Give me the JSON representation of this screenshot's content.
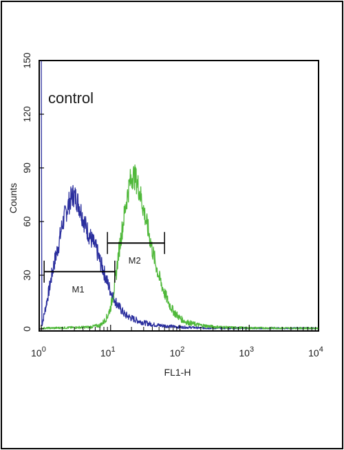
{
  "chart_data": {
    "type": "line",
    "title": "",
    "xlabel": "FL1-H",
    "ylabel": "Counts",
    "x_scale": "log",
    "xlim": [
      1,
      10000
    ],
    "ylim": [
      0,
      150
    ],
    "x_ticks": [
      {
        "base": "10",
        "exp": "0"
      },
      {
        "base": "10",
        "exp": "1"
      },
      {
        "base": "10",
        "exp": "2"
      },
      {
        "base": "10",
        "exp": "3"
      },
      {
        "base": "10",
        "exp": "4"
      }
    ],
    "y_ticks": [
      "0",
      "30",
      "60",
      "90",
      "120",
      "150"
    ],
    "annotation": "control",
    "colors": {
      "blue_series": "#2b2f9e",
      "green_series": "#4fb83a",
      "axis": "#000000"
    },
    "series": [
      {
        "color": "#2b2f9e",
        "x": [
          1,
          1.02,
          1.1,
          1.3,
          1.5,
          1.8,
          2.0,
          2.3,
          2.6,
          2.9,
          3.2,
          3.6,
          4.0,
          4.5,
          5.0,
          5.6,
          6.3,
          7.0,
          8.0,
          9.0,
          10,
          12,
          14,
          16,
          20,
          25,
          30,
          40,
          50,
          70,
          100,
          150,
          200,
          400,
          1000,
          10000
        ],
        "y": [
          150,
          2,
          8,
          22,
          35,
          48,
          58,
          66,
          72,
          75,
          73,
          68,
          62,
          56,
          52,
          48,
          44,
          38,
          32,
          26,
          21,
          15,
          11,
          8,
          6,
          4.5,
          3.5,
          2.5,
          2,
          1.5,
          1,
          0.8,
          0.5,
          0.4,
          0.3,
          0.2
        ]
      },
      {
        "color": "#4fb83a",
        "x": [
          1,
          5,
          7,
          8,
          9,
          10,
          11,
          12,
          13,
          15,
          17,
          19,
          21,
          23,
          25,
          28,
          31,
          35,
          40,
          45,
          50,
          60,
          70,
          80,
          100,
          120,
          150,
          200,
          300,
          500,
          1000,
          10000
        ],
        "y": [
          0.3,
          1,
          2,
          4,
          7,
          12,
          20,
          30,
          42,
          58,
          72,
          82,
          86,
          84,
          80,
          72,
          64,
          55,
          44,
          36,
          29,
          20,
          14,
          10,
          6,
          4,
          3,
          2,
          1.2,
          0.8,
          0.5,
          0.3
        ]
      }
    ],
    "markers": [
      {
        "label": "M1",
        "x_start": 1.1,
        "x_end": 11.5,
        "y": 32
      },
      {
        "label": "M2",
        "x_start": 9,
        "x_end": 60,
        "y": 48
      }
    ]
  }
}
